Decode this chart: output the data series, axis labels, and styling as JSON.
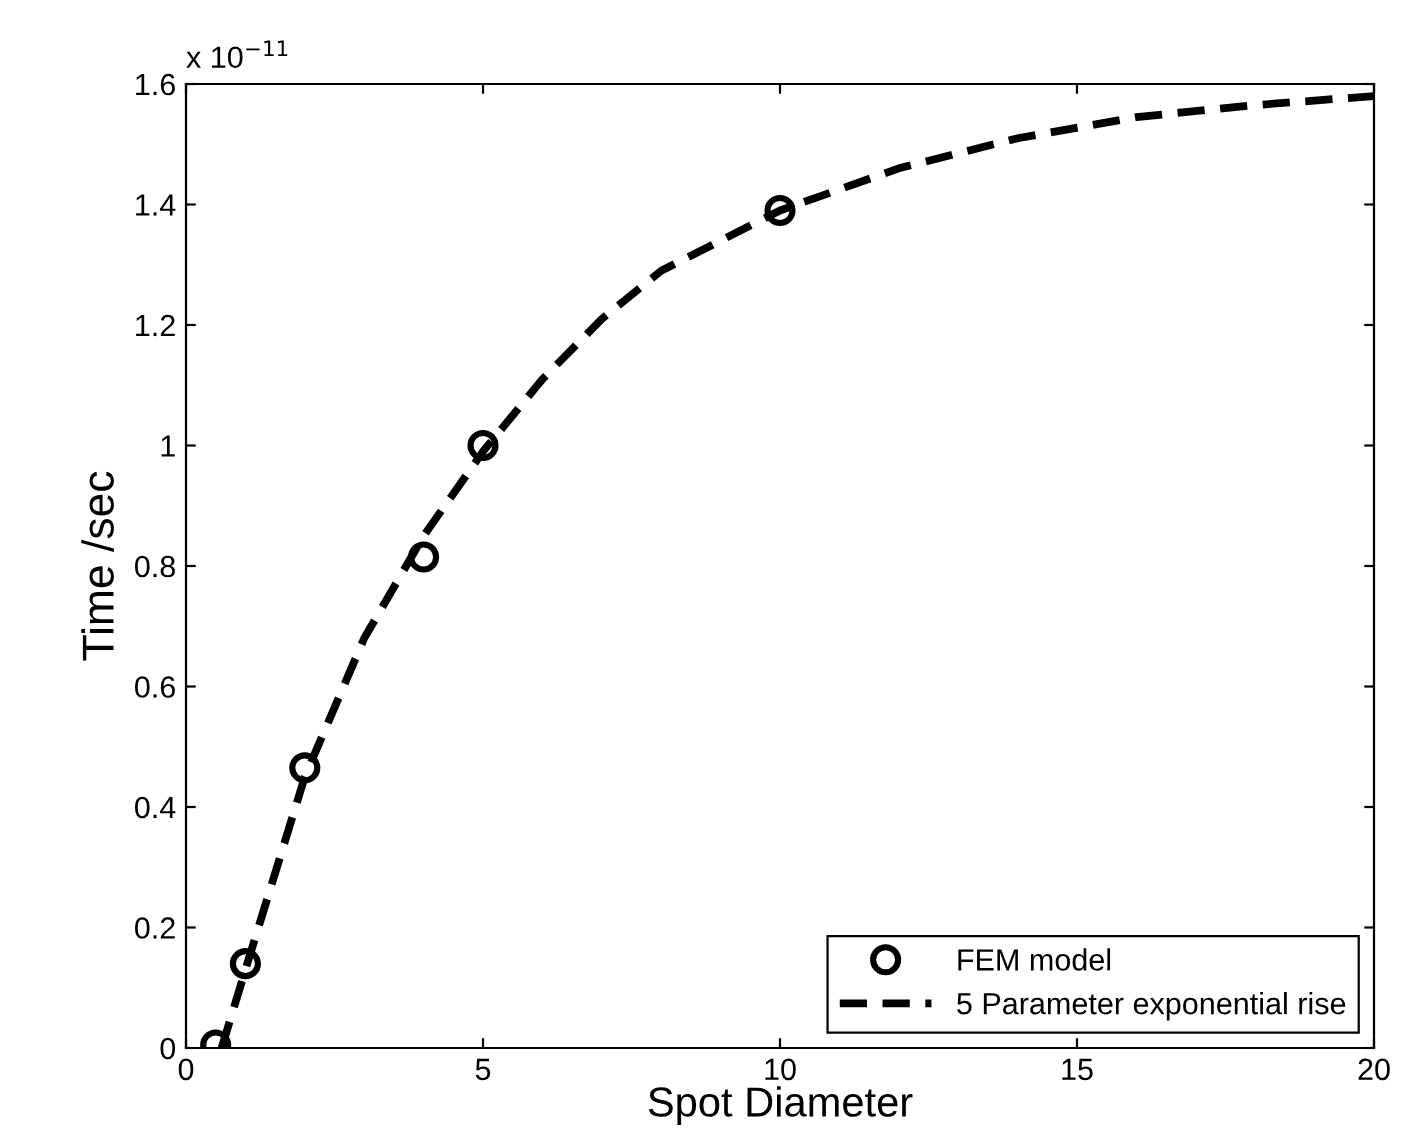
{
  "chart_data": {
    "type": "line",
    "xlabel": "Spot Diameter",
    "ylabel": "Time /sec",
    "annotations": [
      "x 10$^{−11}$"
    ],
    "xlim": [
      0,
      20
    ],
    "xticks": [
      0,
      5,
      10,
      15,
      20
    ],
    "ylim": [
      0,
      1.6
    ],
    "yticks": [
      0,
      0.2,
      0.4,
      0.6,
      0.8,
      1,
      1.2,
      1.4,
      1.6
    ],
    "grid": false,
    "legend": "bottom right",
    "series": [
      {
        "name": "FEM model",
        "type": "scatter",
        "marker": "circle",
        "color": "#000000",
        "x": [
          0.5,
          1,
          2,
          4,
          5,
          10
        ],
        "values": [
          0.005,
          0.14,
          0.465,
          0.815,
          1.0,
          1.39
        ]
      },
      {
        "name": "5 Parameter exponential rise",
        "line_style": "dashed",
        "color": "#000000",
        "x": [
          0.6,
          1,
          2,
          3,
          4,
          5,
          6,
          7,
          8,
          10,
          12,
          14,
          16,
          18,
          20
        ],
        "values": [
          0,
          0.13,
          0.45,
          0.68,
          0.85,
          0.99,
          1.11,
          1.21,
          1.29,
          1.39,
          1.46,
          1.51,
          1.545,
          1.565,
          1.58
        ]
      }
    ]
  }
}
